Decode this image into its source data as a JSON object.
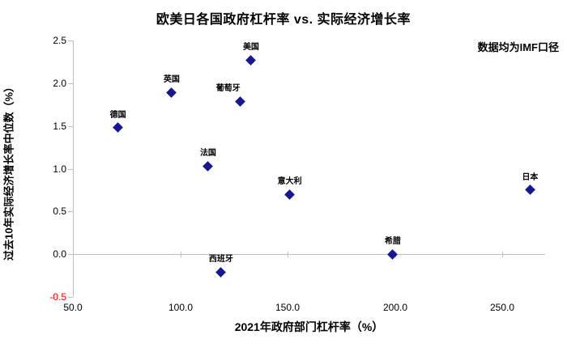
{
  "chart_data": {
    "type": "scatter",
    "title": "欧美日各国政府杠杆率 vs. 实际经济增长率",
    "annotation": "数据均为IMF口径",
    "xlabel": "2021年政府部门杠杆率（%）",
    "ylabel": "过去10年实际经济增长率中位数（%）",
    "xlim": [
      50,
      270
    ],
    "ylim": [
      -0.5,
      2.5
    ],
    "grid": false,
    "legend": "none",
    "x_ticks": [
      50,
      100,
      150,
      200,
      250
    ],
    "x_tick_labels": [
      "50.0",
      "100.0",
      "150.0",
      "200.0",
      "250.0"
    ],
    "y_ticks": [
      2.5,
      2.0,
      1.5,
      1.0,
      0.5,
      0.0,
      -0.5
    ],
    "y_tick_labels": [
      "2.5",
      "2.0",
      "1.5",
      "1.0",
      "0.5",
      "0.0",
      "-0.5"
    ],
    "marker_color": "#171796",
    "axis_color": "#bfbfbf",
    "negative_tick_color": "#ff0000",
    "text_color": "#000000",
    "points": [
      {
        "label": "德国",
        "x": 71,
        "y": 1.48
      },
      {
        "label": "英国",
        "x": 96,
        "y": 1.89
      },
      {
        "label": "法国",
        "x": 113,
        "y": 1.03
      },
      {
        "label": "西班牙",
        "x": 119,
        "y": -0.21
      },
      {
        "label": "葡萄牙",
        "x": 128,
        "y": 1.79,
        "label_dx": -15
      },
      {
        "label": "美国",
        "x": 133,
        "y": 2.27
      },
      {
        "label": "意大利",
        "x": 151,
        "y": 0.7
      },
      {
        "label": "希腊",
        "x": 199,
        "y": 0.0
      },
      {
        "label": "日本",
        "x": 263,
        "y": 0.75
      }
    ]
  }
}
